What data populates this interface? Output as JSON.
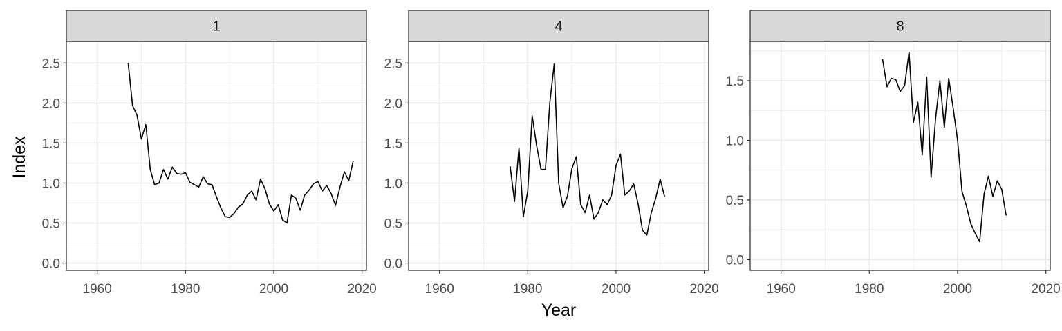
{
  "chart_data": {
    "type": "line",
    "xlabel": "Year",
    "ylabel": "Index",
    "grid": true,
    "line_color": "#000000",
    "strip_color": "#d9d9d9",
    "grid_color": "#ebebeb",
    "panels": [
      {
        "label": "1",
        "xlim": [
          1953,
          2021
        ],
        "ylim": [
          -0.09,
          2.77
        ],
        "xticks": [
          1960,
          1980,
          2000,
          2020
        ],
        "yticks": [
          0.0,
          0.5,
          1.0,
          1.5,
          2.0,
          2.5
        ],
        "ytick_labels": [
          "0.0",
          "0.5",
          "1.0",
          "1.5",
          "2.0",
          "2.5"
        ],
        "x": [
          1967,
          1968,
          1969,
          1970,
          1971,
          1972,
          1973,
          1974,
          1975,
          1976,
          1977,
          1978,
          1979,
          1980,
          1981,
          1982,
          1983,
          1984,
          1985,
          1986,
          1987,
          1988,
          1989,
          1990,
          1991,
          1992,
          1993,
          1994,
          1995,
          1996,
          1997,
          1998,
          1999,
          2000,
          2001,
          2002,
          2003,
          2004,
          2005,
          2006,
          2007,
          2008,
          2009,
          2010,
          2011,
          2012,
          2013,
          2014,
          2015,
          2016,
          2017,
          2018
        ],
        "y": [
          2.5,
          1.97,
          1.85,
          1.55,
          1.73,
          1.17,
          0.98,
          1.0,
          1.17,
          1.05,
          1.2,
          1.12,
          1.11,
          1.13,
          1.01,
          0.98,
          0.95,
          1.08,
          0.99,
          0.98,
          0.83,
          0.69,
          0.58,
          0.57,
          0.62,
          0.7,
          0.74,
          0.85,
          0.9,
          0.79,
          1.05,
          0.93,
          0.74,
          0.65,
          0.73,
          0.54,
          0.5,
          0.85,
          0.81,
          0.66,
          0.85,
          0.91,
          0.99,
          1.02,
          0.9,
          0.97,
          0.87,
          0.72,
          0.95,
          1.14,
          1.03,
          1.28
        ]
      },
      {
        "label": "4",
        "xlim": [
          1953,
          2021
        ],
        "ylim": [
          -0.09,
          2.77
        ],
        "xticks": [
          1960,
          1980,
          2000,
          2020
        ],
        "yticks": [
          0.0,
          0.5,
          1.0,
          1.5,
          2.0,
          2.5
        ],
        "ytick_labels": [
          "0.0",
          "0.5",
          "1.0",
          "1.5",
          "2.0",
          "2.5"
        ],
        "x": [
          1976,
          1977,
          1978,
          1979,
          1980,
          1981,
          1982,
          1983,
          1984,
          1985,
          1986,
          1987,
          1988,
          1989,
          1990,
          1991,
          1992,
          1993,
          1994,
          1995,
          1996,
          1997,
          1998,
          1999,
          2000,
          2001,
          2002,
          2003,
          2004,
          2005,
          2006,
          2007,
          2008,
          2009,
          2010,
          2011
        ],
        "y": [
          1.21,
          0.77,
          1.44,
          0.58,
          0.9,
          1.84,
          1.47,
          1.17,
          1.17,
          2.0,
          2.49,
          1.0,
          0.69,
          0.84,
          1.18,
          1.33,
          0.73,
          0.63,
          0.85,
          0.55,
          0.63,
          0.79,
          0.73,
          0.85,
          1.22,
          1.36,
          0.85,
          0.9,
          0.99,
          0.74,
          0.41,
          0.35,
          0.63,
          0.81,
          1.05,
          0.83
        ]
      },
      {
        "label": "8",
        "xlim": [
          1953,
          2021
        ],
        "ylim": [
          -0.09,
          1.83
        ],
        "xticks": [
          1960,
          1980,
          2000,
          2020
        ],
        "yticks": [
          0.0,
          0.5,
          1.0,
          1.5
        ],
        "ytick_labels": [
          "0.0",
          "0.5",
          "1.0",
          "1.5"
        ],
        "x": [
          1983,
          1984,
          1985,
          1986,
          1987,
          1988,
          1989,
          1990,
          1991,
          1992,
          1993,
          1994,
          1995,
          1996,
          1997,
          1998,
          1999,
          2000,
          2001,
          2002,
          2003,
          2004,
          2005,
          2006,
          2007,
          2008,
          2009,
          2010,
          2011
        ],
        "y": [
          1.68,
          1.45,
          1.52,
          1.51,
          1.41,
          1.46,
          1.74,
          1.15,
          1.32,
          0.88,
          1.53,
          0.69,
          1.18,
          1.5,
          1.11,
          1.52,
          1.27,
          1.0,
          0.57,
          0.45,
          0.3,
          0.22,
          0.15,
          0.55,
          0.7,
          0.53,
          0.66,
          0.59,
          0.37
        ]
      }
    ]
  }
}
